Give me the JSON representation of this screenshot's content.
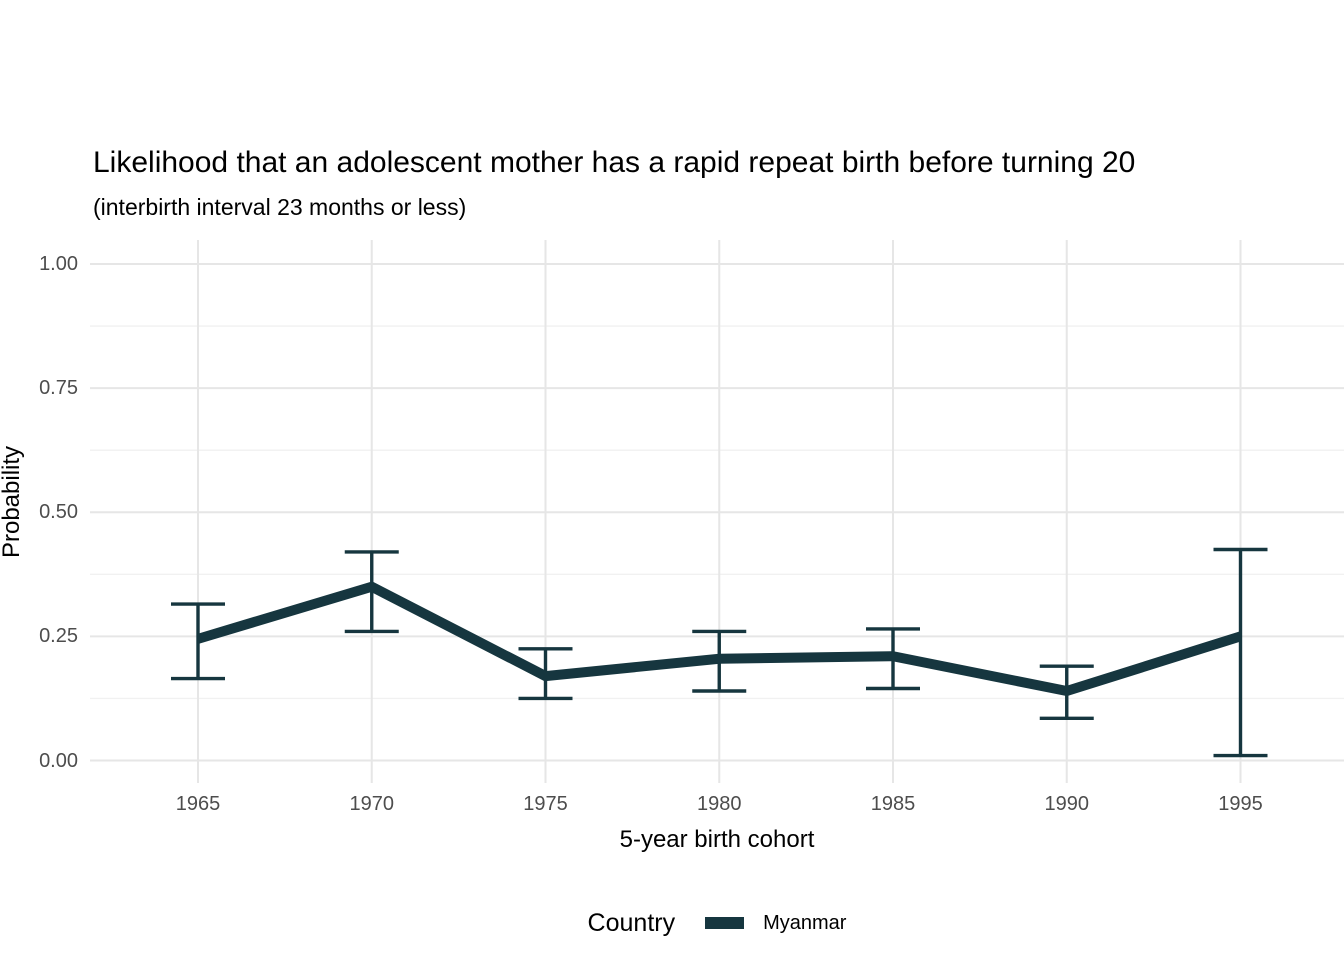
{
  "chart_data": {
    "type": "line",
    "title": "Likelihood that an adolescent mother has a rapid repeat birth before turning 20",
    "subtitle": "(interbirth interval 23 months or less)",
    "xlabel": "5-year birth cohort",
    "ylabel": "Probability",
    "x": [
      1965,
      1970,
      1975,
      1980,
      1985,
      1990,
      1995
    ],
    "series": [
      {
        "name": "Myanmar",
        "color": "#16363f",
        "values": [
          0.245,
          0.35,
          0.17,
          0.205,
          0.21,
          0.14,
          0.25
        ],
        "ci_lower": [
          0.165,
          0.26,
          0.125,
          0.14,
          0.145,
          0.085,
          0.01
        ],
        "ci_upper": [
          0.315,
          0.42,
          0.225,
          0.26,
          0.265,
          0.19,
          0.425
        ]
      }
    ],
    "ylim": [
      0,
      1
    ],
    "yticks": [
      {
        "value": 0.0,
        "label": "0.00"
      },
      {
        "value": 0.25,
        "label": "0.25"
      },
      {
        "value": 0.5,
        "label": "0.50"
      },
      {
        "value": 0.75,
        "label": "0.75"
      },
      {
        "value": 1.0,
        "label": "1.00"
      }
    ],
    "yticks_minor": [
      0.125,
      0.375,
      0.625,
      0.875
    ],
    "grid": {
      "horizontal": "major+minor",
      "vertical": "major"
    },
    "legend": {
      "title": "Country",
      "position": "bottom",
      "entries": [
        "Myanmar"
      ]
    },
    "colors": {
      "background": "#ffffff",
      "grid_major": "#e6e6e6",
      "grid_minor": "#f1f1f1",
      "tick_label": "#4d4d4d",
      "text": "#000000",
      "line": "#16363f"
    },
    "style": {
      "line_width": 10,
      "errorbar_width": 3.4,
      "errorbar_cap_halfwidth": 27
    }
  }
}
